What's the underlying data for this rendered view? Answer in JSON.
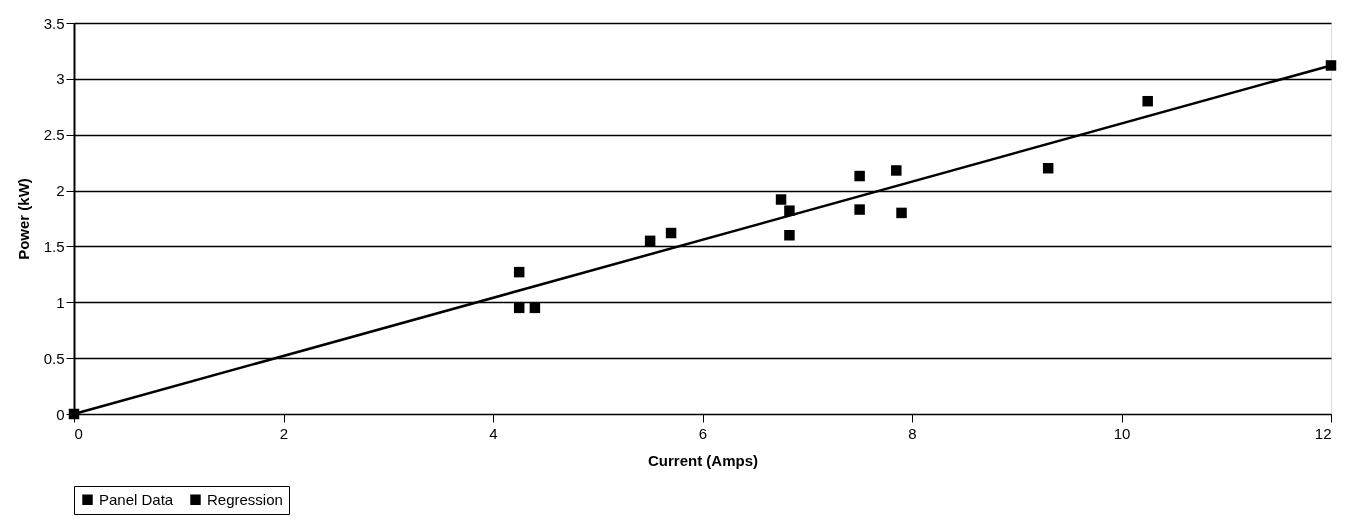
{
  "chart_data": {
    "type": "scatter",
    "xlabel": "Current (Amps)",
    "ylabel": "Power (kW)",
    "xlim": [
      0,
      12
    ],
    "ylim": [
      0,
      3.5
    ],
    "xticks": [
      0,
      2,
      4,
      6,
      8,
      10,
      12
    ],
    "yticks": [
      0,
      0.5,
      1,
      1.5,
      2,
      2.5,
      3,
      3.5
    ],
    "grid": "y",
    "legend": "bottom",
    "marker": "square",
    "series": [
      {
        "name": "Panel Data",
        "color": "#000000",
        "x": [
          4.25,
          4.25,
          4.4,
          5.5,
          5.7,
          6.75,
          6.83,
          6.83,
          7.5,
          7.5,
          7.85,
          7.9,
          9.3,
          10.25
        ],
        "values": [
          1.27,
          0.95,
          0.95,
          1.55,
          1.62,
          1.92,
          1.82,
          1.6,
          2.13,
          1.83,
          2.18,
          1.8,
          2.2,
          2.8
        ]
      },
      {
        "name": "Regression",
        "type": "line",
        "color": "#000000",
        "x": [
          0,
          12
        ],
        "values": [
          0,
          3.12
        ]
      }
    ]
  }
}
